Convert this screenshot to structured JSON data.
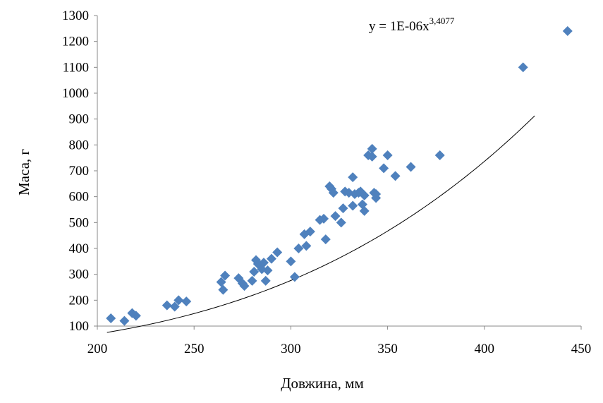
{
  "chart_data": {
    "type": "scatter",
    "title": "",
    "xlabel": "Довжина, мм",
    "ylabel": "Маса, г",
    "xlim": [
      200,
      450
    ],
    "ylim": [
      100,
      1300
    ],
    "xticks": [
      200,
      250,
      300,
      350,
      400,
      450
    ],
    "yticks": [
      100,
      200,
      300,
      400,
      500,
      600,
      700,
      800,
      900,
      1000,
      1100,
      1200,
      1300
    ],
    "grid": false,
    "legend": "none",
    "marker_color": "#4f81bd",
    "trendline": {
      "type": "power",
      "coefficient": 1e-06,
      "exponent": 3.4077,
      "color": "#000000",
      "x_range": [
        205,
        426
      ],
      "equation_base": "y = 1E-06x",
      "equation_exponent": "3,4077"
    },
    "series": [
      {
        "x": [
          207,
          214,
          218,
          220,
          236,
          240,
          242,
          246,
          264,
          265,
          266,
          273,
          275,
          276,
          280,
          281,
          282,
          283,
          285,
          286,
          287,
          288,
          290,
          293,
          300,
          302,
          304,
          307,
          308,
          310,
          315,
          317,
          318,
          320,
          321,
          322,
          323,
          326,
          327,
          328,
          330,
          332,
          332,
          333,
          335,
          336,
          337,
          338,
          338,
          340,
          342,
          342,
          343,
          344,
          344,
          348,
          350,
          354,
          362,
          377,
          420,
          443
        ],
        "y": [
          130,
          120,
          150,
          140,
          180,
          175,
          200,
          195,
          270,
          240,
          295,
          285,
          265,
          255,
          275,
          310,
          355,
          340,
          320,
          345,
          275,
          315,
          360,
          385,
          350,
          290,
          400,
          455,
          410,
          465,
          510,
          515,
          435,
          640,
          630,
          615,
          525,
          500,
          555,
          620,
          615,
          675,
          565,
          610,
          615,
          620,
          570,
          545,
          605,
          760,
          755,
          785,
          615,
          595,
          610,
          710,
          760,
          680,
          715,
          760,
          1100,
          1240
        ]
      }
    ]
  }
}
